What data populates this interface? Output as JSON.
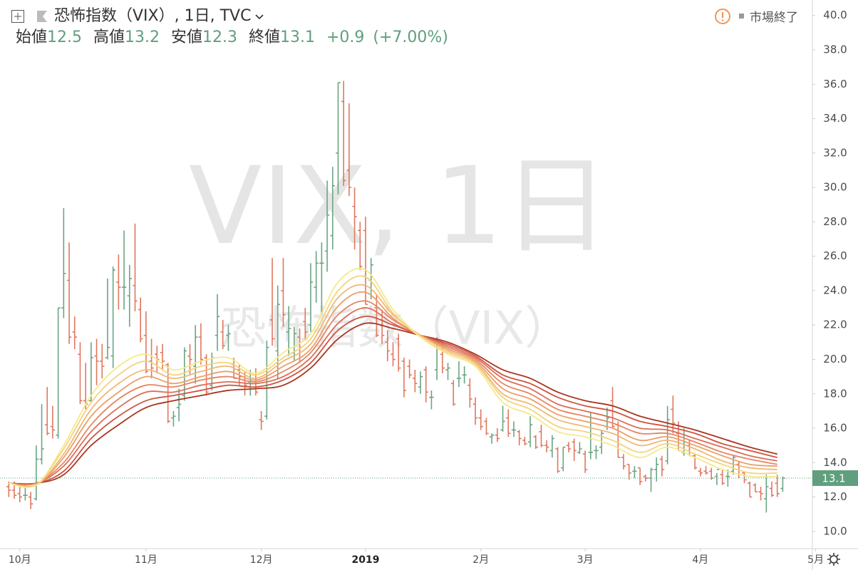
{
  "header": {
    "title": "恐怖指数（VIX）, 1日, TVC",
    "status": "市場終了",
    "ohlc": [
      {
        "label": "始値",
        "value": 12.5
      },
      {
        "label": "高値",
        "value": 13.2
      },
      {
        "label": "安値",
        "value": 12.3
      },
      {
        "label": "終値",
        "value": 13.1
      }
    ],
    "change": "+0.9",
    "change_pct": "(+7.00%)"
  },
  "watermark": {
    "line1": "VIX, 1日",
    "line2": "恐怖指数（VIX）"
  },
  "chart_data": {
    "type": "ohlc",
    "up_color": "#6ba583",
    "down_color": "#e0775f",
    "bars": [
      [
        12.6,
        12.9,
        12.0,
        12.4
      ],
      [
        12.4,
        12.9,
        11.9,
        12.1
      ],
      [
        12.2,
        12.6,
        11.7,
        12.0
      ],
      [
        12.1,
        12.7,
        11.8,
        12.1
      ],
      [
        12.0,
        12.3,
        11.3,
        11.6
      ],
      [
        11.9,
        15.0,
        11.8,
        14.2
      ],
      [
        14.2,
        17.4,
        13.9,
        14.8
      ],
      [
        16.2,
        18.4,
        15.6,
        15.7
      ],
      [
        16.1,
        17.3,
        15.4,
        15.9
      ],
      [
        15.6,
        23.0,
        15.4,
        23.0
      ],
      [
        23.0,
        28.8,
        22.4,
        25.0
      ],
      [
        24.6,
        26.8,
        20.9,
        21.3
      ],
      [
        21.6,
        22.5,
        20.6,
        21.3
      ],
      [
        20.3,
        21.0,
        17.4,
        17.6
      ],
      [
        17.6,
        19.8,
        17.1,
        17.4
      ],
      [
        17.6,
        21.0,
        17.5,
        20.1
      ],
      [
        20.2,
        21.2,
        18.5,
        19.9
      ],
      [
        19.9,
        20.9,
        18.9,
        19.6
      ],
      [
        20.1,
        24.7,
        20.0,
        20.7
      ],
      [
        20.2,
        25.4,
        19.5,
        25.2
      ],
      [
        24.5,
        26.1,
        22.9,
        24.2
      ],
      [
        24.2,
        27.5,
        22.9,
        24.2
      ],
      [
        23.7,
        25.5,
        21.9,
        24.7
      ],
      [
        24.3,
        27.9,
        22.8,
        23.4
      ],
      [
        22.9,
        23.6,
        21.0,
        21.2
      ],
      [
        21.4,
        22.8,
        19.2,
        19.3
      ],
      [
        19.9,
        21.2,
        18.9,
        19.5
      ],
      [
        20.3,
        20.8,
        19.2,
        20.0
      ],
      [
        20.4,
        20.9,
        19.4,
        19.9
      ],
      [
        19.7,
        19.8,
        16.3,
        16.4
      ],
      [
        16.6,
        17.0,
        16.1,
        16.7
      ],
      [
        17.2,
        18.3,
        16.4,
        17.4
      ],
      [
        17.9,
        20.7,
        17.6,
        20.5
      ],
      [
        20.2,
        20.9,
        19.1,
        20.0
      ],
      [
        19.6,
        22.0,
        18.6,
        21.3
      ],
      [
        21.3,
        22.1,
        19.7,
        20.0
      ],
      [
        20.1,
        20.3,
        17.9,
        18.1
      ],
      [
        18.5,
        20.4,
        18.2,
        20.1
      ],
      [
        21.4,
        23.8,
        20.5,
        22.5
      ],
      [
        21.6,
        22.3,
        20.6,
        20.8
      ],
      [
        21.4,
        22.0,
        20.5,
        21.5
      ],
      [
        19.7,
        20.1,
        18.9,
        18.9
      ],
      [
        19.4,
        19.7,
        18.5,
        19.0
      ],
      [
        18.8,
        19.3,
        17.9,
        18.5
      ],
      [
        18.7,
        19.4,
        17.9,
        18.8
      ],
      [
        18.8,
        19.5,
        17.9,
        18.1
      ],
      [
        16.5,
        17.0,
        15.9,
        16.4
      ],
      [
        16.7,
        21.1,
        16.5,
        20.7
      ],
      [
        22.3,
        25.9,
        20.8,
        21.2
      ],
      [
        20.5,
        24.3,
        18.9,
        23.2
      ],
      [
        24.0,
        25.9,
        21.9,
        22.6
      ],
      [
        21.6,
        23.1,
        20.2,
        21.8
      ],
      [
        20.4,
        21.9,
        19.9,
        21.5
      ],
      [
        21.3,
        21.8,
        19.8,
        20.7
      ],
      [
        22.2,
        23.0,
        21.1,
        21.6
      ],
      [
        22.0,
        25.6,
        21.6,
        24.5
      ],
      [
        24.2,
        26.3,
        23.3,
        25.6
      ],
      [
        25.6,
        26.8,
        22.6,
        25.6
      ],
      [
        26.3,
        30.4,
        25.1,
        28.4
      ],
      [
        27.2,
        31.2,
        26.4,
        30.1
      ],
      [
        32.0,
        36.1,
        29.6,
        36.1
      ],
      [
        35.0,
        36.2,
        30.1,
        30.4
      ],
      [
        31.0,
        34.9,
        29.5,
        30.0
      ],
      [
        28.9,
        30.0,
        26.4,
        28.3
      ],
      [
        27.5,
        28.0,
        25.2,
        25.4
      ],
      [
        27.5,
        28.3,
        23.2,
        23.2
      ],
      [
        24.6,
        25.9,
        23.5,
        25.5
      ],
      [
        23.0,
        23.8,
        21.3,
        21.4
      ],
      [
        22.3,
        22.9,
        20.9,
        21.4
      ],
      [
        21.0,
        21.7,
        19.9,
        20.5
      ],
      [
        20.3,
        21.0,
        19.6,
        20.0
      ],
      [
        21.2,
        21.5,
        19.3,
        19.5
      ],
      [
        19.9,
        20.1,
        17.8,
        18.2
      ],
      [
        19.6,
        20.0,
        18.9,
        19.1
      ],
      [
        18.9,
        19.4,
        18.1,
        18.6
      ],
      [
        18.4,
        19.3,
        18.0,
        19.0
      ],
      [
        19.4,
        19.6,
        17.5,
        18.1
      ],
      [
        17.8,
        18.2,
        17.1,
        17.8
      ],
      [
        19.4,
        21.3,
        18.8,
        20.8
      ],
      [
        20.3,
        21.0,
        19.2,
        19.5
      ],
      [
        19.4,
        19.8,
        18.8,
        19.5
      ],
      [
        18.6,
        18.8,
        17.3,
        17.4
      ],
      [
        18.9,
        19.9,
        18.4,
        18.9
      ],
      [
        19.1,
        19.6,
        18.6,
        19.1
      ],
      [
        18.5,
        18.9,
        17.2,
        17.7
      ],
      [
        17.4,
        17.8,
        16.2,
        16.6
      ],
      [
        16.6,
        17.1,
        15.9,
        16.1
      ],
      [
        16.4,
        16.6,
        15.6,
        15.7
      ],
      [
        15.5,
        15.7,
        15.1,
        15.6
      ],
      [
        15.6,
        16.0,
        15.2,
        15.4
      ],
      [
        15.9,
        17.3,
        15.8,
        16.4
      ],
      [
        16.6,
        17.1,
        15.5,
        15.7
      ],
      [
        15.9,
        16.4,
        15.5,
        15.9
      ],
      [
        15.8,
        15.9,
        15.0,
        15.4
      ],
      [
        15.3,
        15.5,
        15.0,
        15.1
      ],
      [
        15.2,
        16.7,
        14.9,
        16.2
      ],
      [
        15.5,
        15.6,
        14.8,
        14.9
      ],
      [
        15.8,
        16.2,
        14.9,
        15.0
      ],
      [
        15.0,
        15.3,
        14.6,
        14.9
      ],
      [
        14.7,
        15.6,
        14.3,
        15.4
      ],
      [
        14.8,
        14.9,
        13.4,
        13.5
      ],
      [
        13.7,
        14.9,
        13.5,
        14.9
      ],
      [
        15.0,
        15.2,
        14.6,
        14.8
      ],
      [
        15.2,
        15.4,
        14.1,
        14.7
      ],
      [
        14.6,
        15.2,
        14.5,
        14.8
      ],
      [
        14.5,
        14.7,
        13.4,
        13.6
      ],
      [
        14.6,
        16.9,
        14.2,
        14.6
      ],
      [
        14.7,
        15.0,
        14.2,
        14.7
      ],
      [
        14.9,
        15.9,
        14.5,
        15.7
      ],
      [
        16.1,
        17.2,
        15.9,
        16.6
      ],
      [
        17.6,
        18.4,
        16.0,
        16.1
      ],
      [
        16.2,
        16.4,
        14.3,
        14.3
      ],
      [
        14.3,
        14.5,
        13.6,
        13.8
      ],
      [
        13.9,
        13.9,
        13.0,
        13.4
      ],
      [
        13.5,
        13.8,
        13.1,
        13.5
      ],
      [
        13.7,
        13.7,
        12.7,
        12.9
      ],
      [
        13.2,
        13.3,
        12.9,
        13.1
      ],
      [
        13.1,
        13.7,
        12.3,
        13.6
      ],
      [
        13.6,
        14.3,
        12.9,
        13.9
      ],
      [
        14.2,
        14.4,
        13.2,
        13.6
      ],
      [
        14.1,
        17.3,
        13.9,
        16.5
      ],
      [
        17.1,
        17.9,
        15.7,
        16.3
      ],
      [
        15.7,
        16.4,
        14.7,
        14.7
      ],
      [
        14.6,
        16.0,
        14.4,
        15.2
      ],
      [
        15.0,
        15.3,
        14.4,
        14.4
      ],
      [
        14.4,
        14.5,
        13.6,
        13.7
      ],
      [
        13.5,
        13.7,
        13.2,
        13.4
      ],
      [
        13.5,
        13.8,
        13.3,
        13.4
      ],
      [
        13.5,
        13.7,
        13.0,
        13.1
      ],
      [
        13.2,
        13.4,
        12.7,
        13.6
      ],
      [
        13.3,
        13.6,
        12.7,
        12.8
      ],
      [
        13.2,
        13.6,
        12.6,
        13.2
      ],
      [
        13.5,
        14.4,
        13.3,
        14.3
      ],
      [
        13.9,
        14.1,
        13.1,
        13.3
      ],
      [
        13.4,
        13.5,
        12.8,
        13.0
      ],
      [
        12.8,
        12.9,
        12.0,
        12.0
      ],
      [
        12.7,
        12.8,
        12.3,
        12.3
      ],
      [
        12.3,
        12.6,
        11.8,
        12.2
      ],
      [
        11.9,
        13.3,
        11.1,
        12.6
      ],
      [
        12.5,
        12.9,
        12.0,
        12.1
      ],
      [
        12.8,
        13.3,
        12.0,
        12.2
      ],
      [
        12.5,
        13.2,
        12.3,
        13.1
      ]
    ],
    "ma_x": [
      0,
      5,
      10,
      15,
      20,
      25,
      30,
      35,
      40,
      45,
      50,
      55,
      60,
      65,
      70,
      75,
      80,
      85,
      90,
      95,
      100,
      105,
      110,
      115,
      120,
      125,
      130,
      135,
      140
    ],
    "series": [
      {
        "color": "#a8361f",
        "values": [
          12.8,
          12.8,
          13.3,
          15.0,
          16.2,
          17.2,
          17.6,
          17.9,
          18.2,
          18.3,
          18.5,
          19.5,
          21.2,
          22.1,
          21.8,
          21.4,
          21.0,
          20.3,
          19.4,
          18.9,
          18.1,
          17.6,
          17.3,
          16.7,
          16.3,
          15.9,
          15.4,
          14.9,
          14.5
        ]
      },
      {
        "color": "#cd5443",
        "values": [
          12.8,
          12.8,
          13.5,
          15.4,
          16.7,
          17.6,
          17.9,
          18.2,
          18.5,
          18.4,
          18.8,
          19.8,
          21.7,
          22.5,
          22.0,
          21.4,
          20.9,
          20.2,
          19.1,
          18.6,
          17.8,
          17.3,
          17.0,
          16.4,
          16.1,
          15.7,
          15.1,
          14.7,
          14.3
        ]
      },
      {
        "color": "#dd6d55",
        "values": [
          12.8,
          12.8,
          13.8,
          15.8,
          17.2,
          18.1,
          18.1,
          18.5,
          18.7,
          18.6,
          19.0,
          20.1,
          22.1,
          23.0,
          22.1,
          21.4,
          20.8,
          20.1,
          18.9,
          18.3,
          17.4,
          17.0,
          16.6,
          16.0,
          15.9,
          15.4,
          14.9,
          14.4,
          14.1
        ]
      },
      {
        "color": "#e68662",
        "values": [
          12.8,
          12.8,
          14.0,
          16.2,
          17.7,
          18.5,
          18.4,
          18.8,
          19.0,
          18.7,
          19.3,
          20.4,
          22.6,
          23.4,
          22.3,
          21.4,
          20.7,
          20.0,
          18.6,
          18.0,
          17.1,
          16.7,
          16.3,
          15.7,
          15.7,
          15.2,
          14.6,
          14.2,
          13.9
        ]
      },
      {
        "color": "#ec9f6a",
        "values": [
          12.8,
          12.7,
          14.3,
          16.7,
          18.1,
          19.0,
          18.6,
          19.0,
          19.3,
          18.8,
          19.6,
          20.6,
          23.1,
          23.9,
          22.4,
          21.4,
          20.6,
          19.9,
          18.3,
          17.7,
          16.8,
          16.4,
          16.0,
          15.3,
          15.5,
          15.0,
          14.4,
          13.9,
          13.8
        ]
      },
      {
        "color": "#f0b873",
        "values": [
          12.8,
          12.7,
          14.5,
          17.1,
          18.6,
          19.4,
          18.9,
          19.3,
          19.6,
          18.9,
          19.9,
          20.9,
          23.6,
          24.3,
          22.6,
          21.4,
          20.5,
          19.8,
          18.0,
          17.4,
          16.5,
          16.1,
          15.7,
          15.0,
          15.3,
          14.8,
          14.1,
          13.7,
          13.6
        ]
      },
      {
        "color": "#f4d27e",
        "values": [
          12.8,
          12.7,
          14.8,
          17.5,
          19.1,
          19.9,
          19.1,
          19.6,
          19.8,
          19.1,
          20.1,
          21.2,
          24.0,
          24.8,
          22.7,
          21.3,
          20.4,
          19.7,
          17.8,
          17.1,
          16.1,
          15.8,
          15.3,
          14.6,
          15.1,
          14.5,
          13.9,
          13.4,
          13.4
        ]
      },
      {
        "color": "#f6e98a",
        "values": [
          12.8,
          12.7,
          15.0,
          17.9,
          19.6,
          20.3,
          19.4,
          19.9,
          20.1,
          19.2,
          20.4,
          21.5,
          24.5,
          25.2,
          22.9,
          21.3,
          20.3,
          19.6,
          17.5,
          16.8,
          15.8,
          15.5,
          15.0,
          14.3,
          14.9,
          14.3,
          13.6,
          13.2,
          13.2
        ]
      }
    ],
    "last_price": 13.1,
    "last_price_color": "#5f9f7d",
    "xlim": [
      -1.6,
      146.4
    ],
    "xticks": [
      {
        "value": 2,
        "label": "10月"
      },
      {
        "value": 25,
        "label": "11月"
      },
      {
        "value": 46,
        "label": "12月"
      },
      {
        "value": 65,
        "label": "2019"
      },
      {
        "value": 86,
        "label": "2月"
      },
      {
        "value": 105,
        "label": "3月"
      },
      {
        "value": 126,
        "label": "4月"
      },
      {
        "value": 147,
        "label": "5月"
      }
    ],
    "ylim": [
      9.0,
      40.9
    ],
    "yticks": [
      {
        "value": 10,
        "label": "10.0"
      },
      {
        "value": 12,
        "label": "12.0"
      },
      {
        "value": 14,
        "label": "14.0"
      },
      {
        "value": 16,
        "label": "16.0"
      },
      {
        "value": 18,
        "label": "18.0"
      },
      {
        "value": 20,
        "label": "20.0"
      },
      {
        "value": 22,
        "label": "22.0"
      },
      {
        "value": 24,
        "label": "24.0"
      },
      {
        "value": 26,
        "label": "26.0"
      },
      {
        "value": 28,
        "label": "28.0"
      },
      {
        "value": 30,
        "label": "30.0"
      },
      {
        "value": 32,
        "label": "32.0"
      },
      {
        "value": 34,
        "label": "34.0"
      },
      {
        "value": 36,
        "label": "36.0"
      },
      {
        "value": 38,
        "label": "38.0"
      },
      {
        "value": 40,
        "label": "40.0"
      }
    ],
    "grid": false
  }
}
